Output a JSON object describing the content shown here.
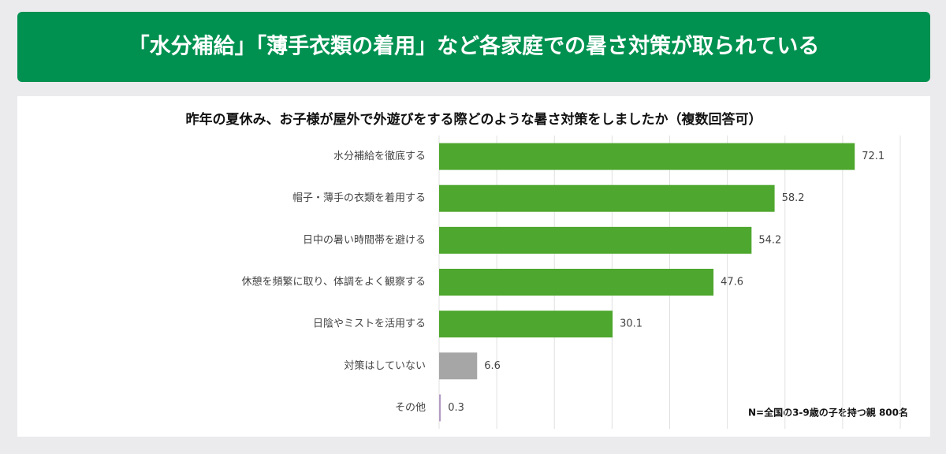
{
  "chart_data": {
    "type": "bar",
    "orientation": "horizontal",
    "banner": "「水分補給」「薄手衣類の着用」など各家庭での暑さ対策が取られている",
    "title": "昨年の夏休み、お子様が屋外で外遊びをする際どのような暑さ対策をしましたか（複数回答可）",
    "categories": [
      "水分補給を徹底する",
      "帽子・薄手の衣類を着用する",
      "日中の暑い時間帯を避ける",
      "休憩を頻繁に取り、体調をよく観察する",
      "日陰やミストを活用する",
      "対策はしていない",
      "その他"
    ],
    "values": [
      72.1,
      58.2,
      54.2,
      47.6,
      30.1,
      6.6,
      0.3
    ],
    "colors": [
      "#4ea72e",
      "#4ea72e",
      "#4ea72e",
      "#4ea72e",
      "#4ea72e",
      "#a6a6a6",
      "#b39cc4"
    ],
    "xlim": [
      0,
      80
    ],
    "xticks": [
      0,
      10,
      20,
      30,
      40,
      50,
      60,
      70,
      80
    ],
    "grid": true,
    "note": "N=全国の3-9歳の子を持つ親 800名"
  }
}
